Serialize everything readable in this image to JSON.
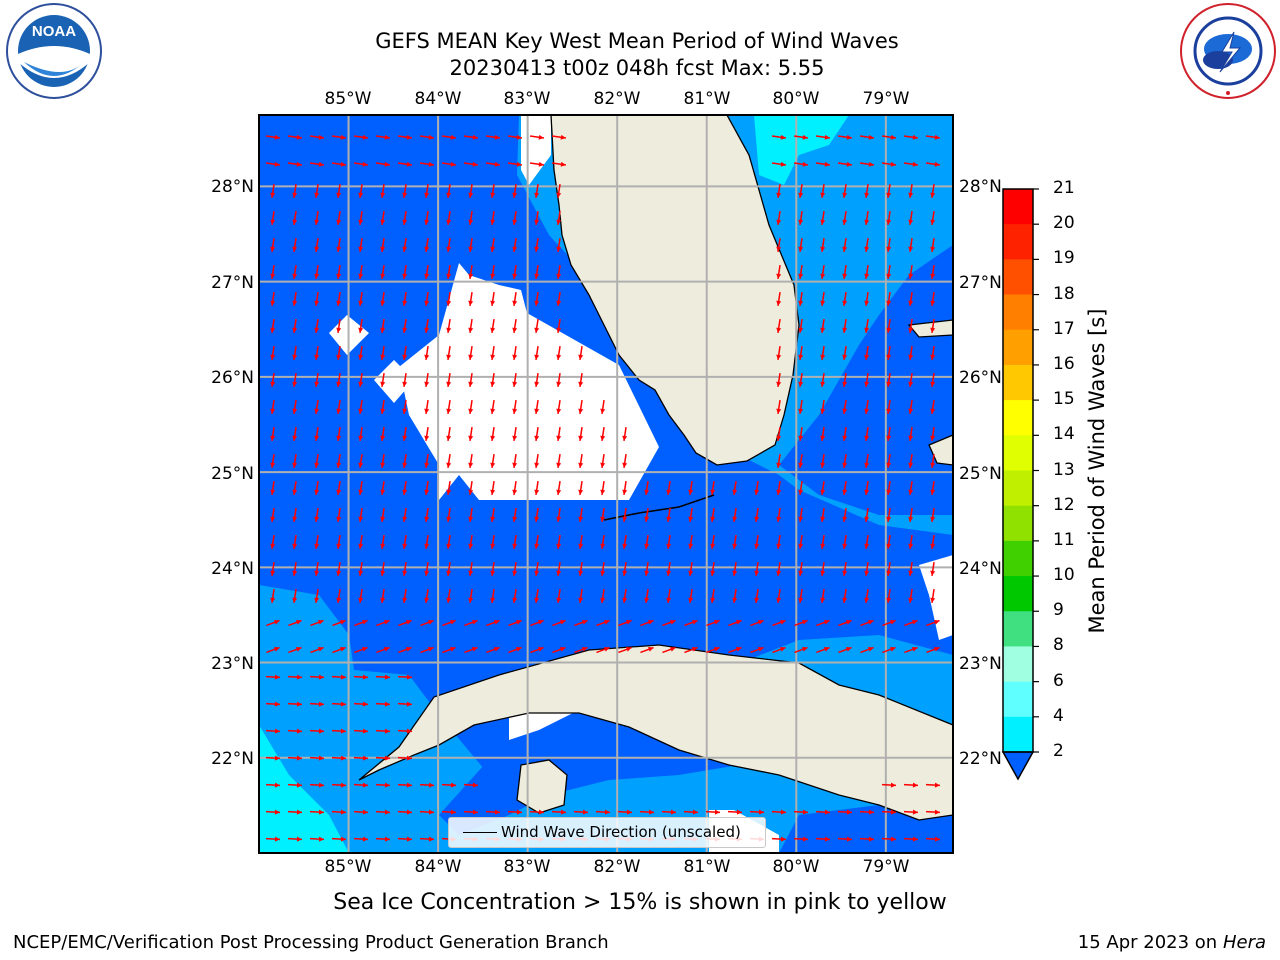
{
  "header": {
    "title_line1": "GEFS MEAN Key West Mean Period of Wind Waves",
    "title_line2": "20230413 t00z 048h fcst   Max: 5.55"
  },
  "logos": {
    "left": {
      "name": "noaa-logo",
      "text": "NOAA",
      "ring_text": "NATIONAL OCEANIC AND ATMOSPHERIC ADMINISTRATION · U.S. DEPARTMENT OF COMMERCE"
    },
    "right": {
      "name": "nws-logo",
      "ring_text": "NATIONAL WEATHER SERVICE"
    }
  },
  "map": {
    "lon_labels": [
      "85°W",
      "84°W",
      "83°W",
      "82°W",
      "81°W",
      "80°W",
      "79°W"
    ],
    "lat_labels": [
      "28°N",
      "27°N",
      "26°N",
      "25°N",
      "24°N",
      "23°N",
      "22°N"
    ],
    "extent": {
      "lon_min": -86.0,
      "lon_max": -78.25,
      "lat_min": 21.0,
      "lat_max": 28.75
    },
    "arrow_color": "#ff0000",
    "land_color": "#eeecdd",
    "legend_label": "Wind Wave Direction (unscaled)"
  },
  "colorbar": {
    "label": "Mean Period of Wind Waves [s]",
    "ticks": [
      "21",
      "20",
      "19",
      "18",
      "17",
      "16",
      "15",
      "14",
      "13",
      "12",
      "11",
      "10",
      "9",
      "8",
      "6",
      "4",
      "2"
    ],
    "colors": [
      "#ff0000",
      "#ff2200",
      "#ff5000",
      "#ff8000",
      "#ffa000",
      "#ffc800",
      "#ffff00",
      "#e0ff00",
      "#c0f000",
      "#90e000",
      "#40d000",
      "#00c800",
      "#40e080",
      "#a0ffe0",
      "#60ffff",
      "#00f0ff",
      "#00a0ff",
      "#0060ff"
    ]
  },
  "footer": {
    "caption": "Sea Ice Concentration > 15% is shown in pink to yellow",
    "left": "NCEP/EMC/Verification Post Processing Product Generation Branch",
    "right_prefix": "15 Apr 2023 on ",
    "right_machine": "Hera"
  }
}
